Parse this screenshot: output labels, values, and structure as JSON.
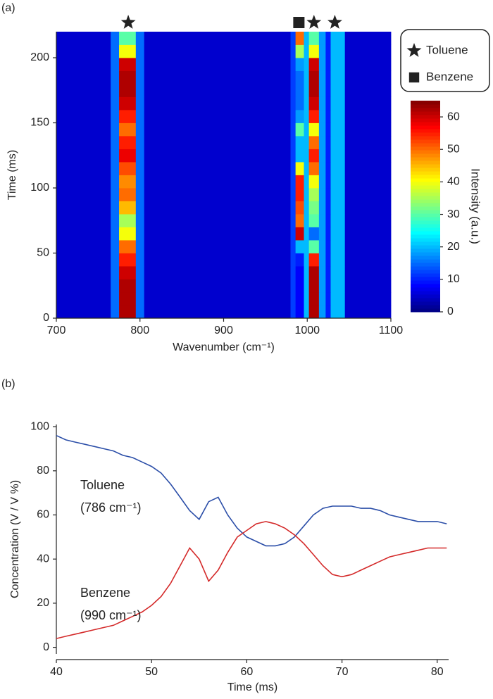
{
  "chart_data": [
    {
      "type": "heatmap",
      "panel_label": "(a)",
      "x_label": "Wavenumber (cm⁻¹)",
      "y_label": "Time (ms)",
      "colorbar_label": "Intensity (a.u.)",
      "xlim": [
        700,
        1100
      ],
      "xticks": [
        700,
        800,
        900,
        1000,
        1100
      ],
      "ylim": [
        0,
        220
      ],
      "yticks": [
        0,
        50,
        100,
        150,
        200
      ],
      "zlim": [
        0,
        65
      ],
      "zticks": [
        0,
        10,
        20,
        30,
        40,
        50,
        60
      ],
      "colormap": "jet",
      "x_bins": [
        700,
        765,
        775,
        795,
        805,
        980,
        986,
        996,
        1002,
        1014,
        1022,
        1028,
        1045,
        1100
      ],
      "y_bins": [
        0,
        10,
        20,
        30,
        40,
        50,
        60,
        70,
        80,
        90,
        100,
        110,
        120,
        130,
        140,
        150,
        160,
        170,
        180,
        190,
        200,
        210,
        220
      ],
      "z": [
        [
          5,
          15,
          62,
          15,
          5,
          12,
          8,
          20,
          62,
          18,
          10,
          20,
          5
        ],
        [
          5,
          15,
          62,
          15,
          5,
          12,
          8,
          20,
          62,
          18,
          10,
          20,
          5
        ],
        [
          5,
          15,
          62,
          15,
          5,
          12,
          8,
          20,
          62,
          18,
          10,
          20,
          5
        ],
        [
          5,
          15,
          60,
          15,
          5,
          12,
          8,
          20,
          62,
          18,
          10,
          20,
          5
        ],
        [
          5,
          15,
          55,
          15,
          5,
          12,
          10,
          20,
          55,
          18,
          10,
          20,
          5
        ],
        [
          5,
          15,
          50,
          15,
          5,
          12,
          20,
          20,
          30,
          18,
          10,
          20,
          5
        ],
        [
          5,
          15,
          40,
          15,
          5,
          12,
          60,
          20,
          15,
          18,
          10,
          20,
          5
        ],
        [
          5,
          15,
          35,
          15,
          5,
          12,
          50,
          20,
          30,
          18,
          10,
          20,
          5
        ],
        [
          5,
          15,
          45,
          15,
          5,
          12,
          52,
          20,
          32,
          18,
          10,
          20,
          5
        ],
        [
          5,
          15,
          50,
          15,
          5,
          12,
          55,
          20,
          35,
          18,
          10,
          20,
          5
        ],
        [
          5,
          15,
          48,
          15,
          5,
          12,
          55,
          20,
          40,
          18,
          10,
          20,
          5
        ],
        [
          5,
          15,
          52,
          15,
          5,
          12,
          40,
          20,
          50,
          18,
          10,
          20,
          5
        ],
        [
          5,
          15,
          58,
          15,
          5,
          12,
          20,
          20,
          55,
          18,
          10,
          20,
          5
        ],
        [
          5,
          15,
          55,
          15,
          5,
          12,
          20,
          20,
          50,
          18,
          10,
          20,
          5
        ],
        [
          5,
          15,
          50,
          15,
          5,
          12,
          30,
          20,
          40,
          18,
          10,
          20,
          5
        ],
        [
          5,
          15,
          55,
          15,
          5,
          12,
          18,
          20,
          55,
          18,
          10,
          20,
          5
        ],
        [
          5,
          15,
          60,
          15,
          5,
          12,
          15,
          20,
          60,
          18,
          10,
          20,
          5
        ],
        [
          5,
          15,
          62,
          15,
          5,
          12,
          15,
          20,
          62,
          18,
          10,
          20,
          5
        ],
        [
          5,
          15,
          62,
          15,
          5,
          12,
          15,
          20,
          62,
          18,
          10,
          20,
          5
        ],
        [
          5,
          15,
          60,
          15,
          5,
          12,
          18,
          20,
          60,
          18,
          10,
          20,
          5
        ],
        [
          5,
          15,
          40,
          15,
          5,
          12,
          35,
          20,
          40,
          18,
          10,
          20,
          5
        ],
        [
          5,
          15,
          30,
          15,
          5,
          12,
          50,
          20,
          30,
          18,
          10,
          20,
          5
        ]
      ],
      "peak_markers": [
        {
          "x": 786,
          "symbol": "star"
        },
        {
          "x": 990,
          "symbol": "square"
        },
        {
          "x": 1008,
          "symbol": "star"
        },
        {
          "x": 1033,
          "symbol": "star"
        }
      ],
      "legend": [
        {
          "symbol": "star",
          "name": "Toluene"
        },
        {
          "symbol": "square",
          "name": "Benzene"
        }
      ]
    },
    {
      "type": "line",
      "panel_label": "(b)",
      "x_label": "Time (ms)",
      "y_label": "Concentration (V / V %)",
      "xlim": [
        40,
        81.2
      ],
      "xticks": [
        40,
        50,
        60,
        70,
        80
      ],
      "ylim": [
        -3,
        101
      ],
      "yticks": [
        0,
        20,
        40,
        60,
        80,
        100
      ],
      "x": [
        40,
        41,
        42,
        43,
        44,
        45,
        46,
        47,
        48,
        49,
        50,
        51,
        52,
        53,
        54,
        55,
        56,
        57,
        58,
        59,
        60,
        61,
        62,
        63,
        64,
        65,
        66,
        67,
        68,
        69,
        70,
        71,
        72,
        73,
        74,
        75,
        76,
        77,
        78,
        79,
        80,
        81
      ],
      "series": [
        {
          "name": "Toluene",
          "annotation": "(786 cm⁻¹)",
          "color": "#2b4ea8",
          "values": [
            96,
            94,
            93,
            92,
            91,
            90,
            89,
            87,
            86,
            84,
            82,
            79,
            74,
            68,
            62,
            58,
            66,
            68,
            60,
            54,
            50,
            48,
            46,
            46,
            47,
            50,
            55,
            60,
            63,
            64,
            64,
            64,
            63,
            63,
            62,
            60,
            59,
            58,
            57,
            57,
            57,
            56
          ]
        },
        {
          "name": "Benzene",
          "annotation": "(990 cm⁻¹)",
          "color": "#d42a2a",
          "values": [
            4,
            5,
            6,
            7,
            8,
            9,
            10,
            12,
            14,
            16,
            19,
            23,
            29,
            37,
            45,
            40,
            30,
            35,
            43,
            50,
            53,
            56,
            57,
            56,
            54,
            51,
            47,
            42,
            37,
            33,
            32,
            33,
            35,
            37,
            39,
            41,
            42,
            43,
            44,
            45,
            45,
            45
          ]
        }
      ]
    }
  ]
}
